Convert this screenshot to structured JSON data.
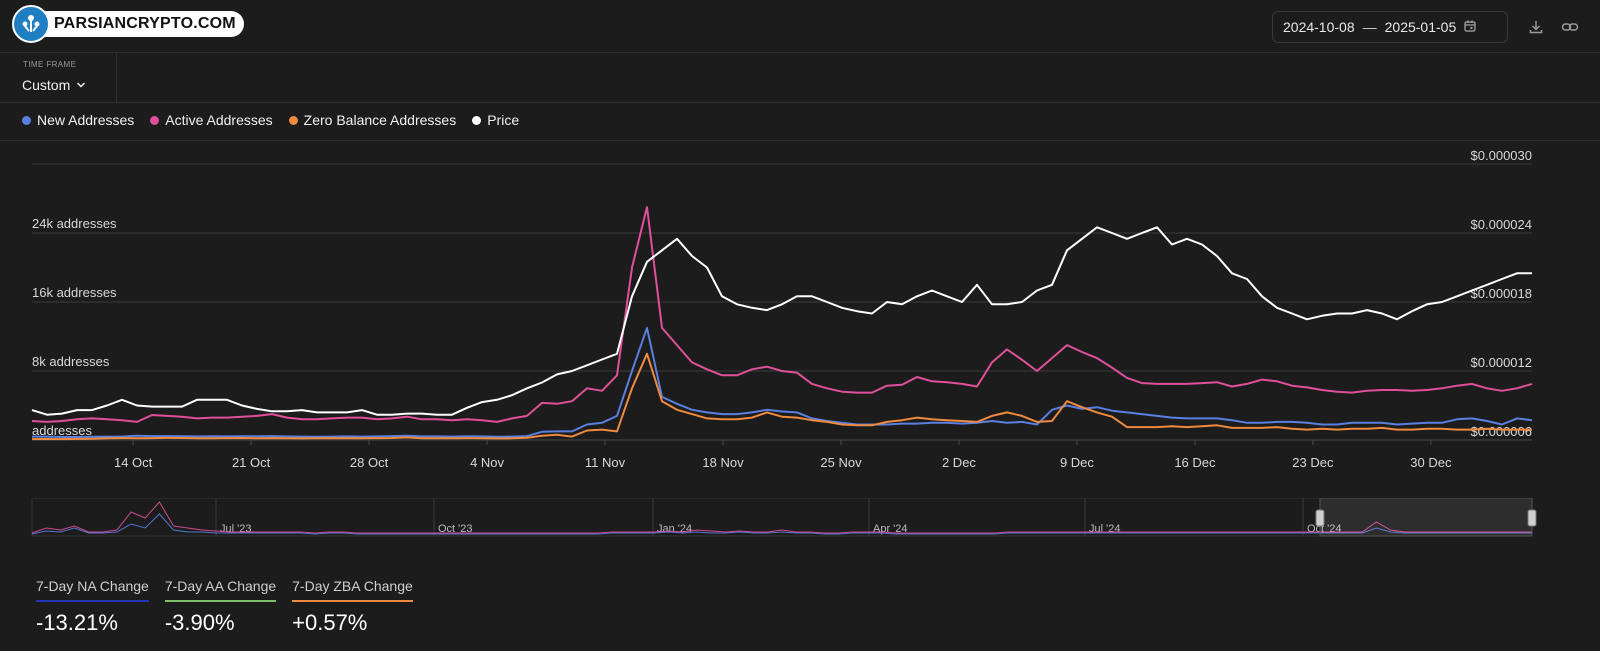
{
  "brand": {
    "logo_text": "PARSIANCRYPTO.COM"
  },
  "date_range": {
    "start": "2024-10-08",
    "separator": "—",
    "end": "2025-01-05"
  },
  "toolbar": {
    "download_icon": "download-icon",
    "link_icon": "link-icon",
    "calendar_icon": "calendar-icon"
  },
  "time_frame": {
    "label": "TIME FRAME",
    "value": "Custom"
  },
  "legend": [
    {
      "label": "New Addresses",
      "color": "#5b7fe0"
    },
    {
      "label": "Active Addresses",
      "color": "#e0509a"
    },
    {
      "label": "Zero Balance Addresses",
      "color": "#ef8a3e"
    },
    {
      "label": "Price",
      "color": "#ffffff"
    }
  ],
  "stats": [
    {
      "label": "7-Day NA Change",
      "value": "-13.21%",
      "color": "#2236b8"
    },
    {
      "label": "7-Day AA Change",
      "value": "-3.90%",
      "color": "#7fbf6a"
    },
    {
      "label": "7-Day ZBA Change",
      "value": "+0.57%",
      "color": "#ef8a3e"
    }
  ],
  "chart_data": {
    "type": "line",
    "x_start": "2024-10-08",
    "x_end": "2025-01-05",
    "x_ticks": [
      "14 Oct",
      "21 Oct",
      "28 Oct",
      "4 Nov",
      "11 Nov",
      "18 Nov",
      "25 Nov",
      "2 Dec",
      "9 Dec",
      "16 Dec",
      "23 Dec",
      "30 Dec"
    ],
    "y_left": {
      "ylim": [
        0,
        32000
      ],
      "ticks": [
        0,
        8000,
        16000,
        24000
      ],
      "tick_labels": [
        "addresses",
        "8k addresses",
        "16k addresses",
        "24k addresses"
      ]
    },
    "y_right": {
      "ylim": [
        6e-06,
        3e-05
      ],
      "ticks": [
        6e-06,
        1.2e-05,
        1.8e-05,
        2.4e-05,
        3e-05
      ],
      "tick_labels": [
        "$0.000006",
        "$0.000012",
        "$0.000018",
        "$0.000024",
        "$0.000030"
      ]
    },
    "grid": true,
    "series": [
      {
        "name": "New Addresses",
        "axis": "left",
        "color": "#5b7fe0",
        "values": [
          400,
          400,
          350,
          350,
          380,
          400,
          400,
          500,
          450,
          450,
          430,
          420,
          440,
          420,
          430,
          430,
          450,
          420,
          400,
          380,
          400,
          420,
          400,
          420,
          450,
          500,
          420,
          420,
          400,
          430,
          420,
          380,
          400,
          450,
          950,
          1000,
          1000,
          1800,
          2000,
          2800,
          8000,
          13000,
          5000,
          4200,
          3500,
          3200,
          3000,
          3000,
          3200,
          3500,
          3300,
          3200,
          2500,
          2200,
          2000,
          1800,
          1800,
          1800,
          1900,
          1900,
          2000,
          2000,
          1900,
          2000,
          2200,
          2000,
          2100,
          1800,
          3500,
          4000,
          3600,
          3800,
          3400,
          3200,
          3000,
          2800,
          2600,
          2500,
          2500,
          2500,
          2300,
          2000,
          2000,
          2100,
          2100,
          2000,
          1800,
          1800,
          2000,
          2000,
          2000,
          1800,
          1900,
          2000,
          2000,
          2400,
          2500,
          2200,
          1800,
          2500,
          2300
        ]
      },
      {
        "name": "Active Addresses",
        "axis": "left",
        "color": "#e0509a",
        "values": [
          2200,
          2100,
          2200,
          2400,
          2500,
          2400,
          2300,
          2100,
          2900,
          2800,
          2700,
          2500,
          2600,
          2600,
          2700,
          2800,
          3000,
          2600,
          2400,
          2400,
          2500,
          2600,
          2600,
          2400,
          2500,
          2700,
          2400,
          2400,
          2300,
          2400,
          2300,
          2100,
          2500,
          2800,
          4300,
          4200,
          4500,
          6000,
          5700,
          7500,
          20000,
          27000,
          13000,
          11000,
          9000,
          8200,
          7500,
          7500,
          8200,
          8500,
          8000,
          7800,
          6500,
          6000,
          5600,
          5500,
          5500,
          6300,
          6400,
          7300,
          6800,
          6700,
          6500,
          6200,
          9000,
          10500,
          9300,
          8000,
          9500,
          11000,
          10200,
          9500,
          8400,
          7200,
          6600,
          6500,
          6500,
          6500,
          6600,
          6700,
          6200,
          6500,
          7000,
          6800,
          6300,
          6100,
          5800,
          5600,
          5500,
          5700,
          5800,
          5800,
          5700,
          5800,
          6000,
          6300,
          6500,
          6000,
          5700,
          6000,
          6500
        ]
      },
      {
        "name": "Zero Balance Addresses",
        "axis": "left",
        "color": "#ef8a3e",
        "values": [
          100,
          120,
          100,
          130,
          150,
          200,
          220,
          200,
          220,
          240,
          230,
          200,
          210,
          220,
          230,
          200,
          220,
          200,
          180,
          200,
          220,
          200,
          210,
          220,
          230,
          300,
          200,
          200,
          210,
          220,
          200,
          180,
          200,
          250,
          500,
          600,
          400,
          1100,
          1200,
          1000,
          6000,
          10000,
          4500,
          3500,
          3000,
          2500,
          2400,
          2400,
          2600,
          3200,
          2700,
          2600,
          2300,
          2100,
          1800,
          1700,
          1700,
          2100,
          2300,
          2600,
          2400,
          2300,
          2200,
          2100,
          2800,
          3200,
          2800,
          2100,
          2200,
          4500,
          3800,
          3200,
          2700,
          1500,
          1500,
          1500,
          1600,
          1500,
          1600,
          1700,
          1400,
          1400,
          1400,
          1500,
          1300,
          1200,
          1300,
          1200,
          1300,
          1300,
          1400,
          1200,
          1200,
          1300,
          1300,
          1200,
          1200,
          1300,
          1200,
          1200,
          1200
        ]
      },
      {
        "name": "Price",
        "axis": "right",
        "color": "#ffffff",
        "values": [
          8.6e-06,
          8.2e-06,
          8.3e-06,
          8.6e-06,
          8.6e-06,
          9e-06,
          9.5e-06,
          9e-06,
          8.9e-06,
          8.9e-06,
          8.9e-06,
          9.5e-06,
          9.5e-06,
          9.5e-06,
          9e-06,
          8.7e-06,
          8.5e-06,
          8.5e-06,
          8.6e-06,
          8.4e-06,
          8.4e-06,
          8.4e-06,
          8.6e-06,
          8.2e-06,
          8.2e-06,
          8.3e-06,
          8.3e-06,
          8.2e-06,
          8.2e-06,
          8.8e-06,
          9.3e-06,
          9.5e-06,
          9.9e-06,
          1.05e-05,
          1.1e-05,
          1.17e-05,
          1.2e-05,
          1.25e-05,
          1.3e-05,
          1.35e-05,
          1.85e-05,
          2.15e-05,
          2.25e-05,
          2.35e-05,
          2.2e-05,
          2.1e-05,
          1.85e-05,
          1.78e-05,
          1.75e-05,
          1.73e-05,
          1.78e-05,
          1.85e-05,
          1.85e-05,
          1.8e-05,
          1.75e-05,
          1.72e-05,
          1.7e-05,
          1.8e-05,
          1.78e-05,
          1.85e-05,
          1.9e-05,
          1.85e-05,
          1.8e-05,
          1.95e-05,
          1.78e-05,
          1.78e-05,
          1.8e-05,
          1.9e-05,
          1.95e-05,
          2.25e-05,
          2.35e-05,
          2.45e-05,
          2.4e-05,
          2.35e-05,
          2.4e-05,
          2.45e-05,
          2.3e-05,
          2.35e-05,
          2.3e-05,
          2.2e-05,
          2.05e-05,
          2e-05,
          1.85e-05,
          1.75e-05,
          1.7e-05,
          1.65e-05,
          1.68e-05,
          1.7e-05,
          1.7e-05,
          1.73e-05,
          1.7e-05,
          1.65e-05,
          1.72e-05,
          1.78e-05,
          1.8e-05,
          1.85e-05,
          1.9e-05,
          1.95e-05,
          2e-05,
          2.05e-05,
          2.05e-05
        ]
      }
    ],
    "navigator": {
      "ticks": [
        "Jul '23",
        "Oct '23",
        "Jan '24",
        "Apr '24",
        "Jul '24",
        "Oct '24"
      ],
      "series": [
        {
          "name": "Active Addresses",
          "color": "#e0509a",
          "values": [
            0.5,
            3,
            2,
            4,
            1,
            1,
            2,
            11,
            8,
            16,
            4,
            3,
            2,
            1.5,
            1,
            1,
            1,
            1,
            1,
            1,
            0.5,
            1,
            1,
            0.5,
            0.5,
            0.5,
            0.5,
            0.5,
            0.5,
            0.5,
            0.5,
            0.5,
            0.5,
            0.5,
            0.5,
            0.5,
            0.5,
            0.5,
            0.5,
            0.5,
            0.5,
            1,
            1,
            1,
            1,
            1.5,
            1,
            2,
            1.5,
            1,
            1.5,
            1,
            1,
            2,
            1,
            1,
            0.5,
            0.5,
            1,
            1,
            1,
            0.5,
            0.5,
            0.5,
            0.5,
            0.5,
            0.5,
            0.5,
            0.5,
            1,
            1,
            1,
            1,
            1,
            1,
            1,
            1,
            1,
            1,
            1,
            1,
            1,
            1,
            1,
            1,
            1,
            1,
            1,
            1,
            1,
            1,
            1,
            1,
            1,
            1,
            6,
            2,
            1,
            1,
            1,
            1,
            1,
            1,
            1,
            1,
            1,
            1
          ]
        },
        {
          "name": "New Addresses",
          "color": "#5b7fe0",
          "values": [
            0,
            1.5,
            1,
            3,
            0.5,
            0.5,
            1,
            5,
            3,
            10,
            2,
            1,
            1,
            0.5,
            0.5,
            0.5,
            0.5,
            0.5,
            0.5,
            0.5,
            0,
            0.5,
            0.5,
            0,
            0,
            0,
            0,
            0,
            0,
            0,
            0,
            0,
            0,
            0,
            0,
            0,
            0,
            0,
            0,
            0,
            0,
            0.5,
            0.5,
            0.5,
            0.5,
            1,
            0.5,
            1,
            0.5,
            0.5,
            1,
            0.5,
            0.5,
            1,
            0.5,
            0.5,
            0,
            0,
            0.5,
            0.5,
            0.5,
            0,
            0,
            0,
            0,
            0,
            0,
            0,
            0,
            0.5,
            0.5,
            0.5,
            0.5,
            0.5,
            0.5,
            0.5,
            0.5,
            0.5,
            0.5,
            0.5,
            0.5,
            0.5,
            0.5,
            0.5,
            0.5,
            0.5,
            0.5,
            0.5,
            0.5,
            0.5,
            0.5,
            0.5,
            0.5,
            0.5,
            0.5,
            3,
            1,
            0.5,
            0.5,
            0.5,
            0.5,
            0.5,
            0.5,
            0.5,
            0.5,
            0.5,
            0.5
          ]
        }
      ]
    }
  }
}
